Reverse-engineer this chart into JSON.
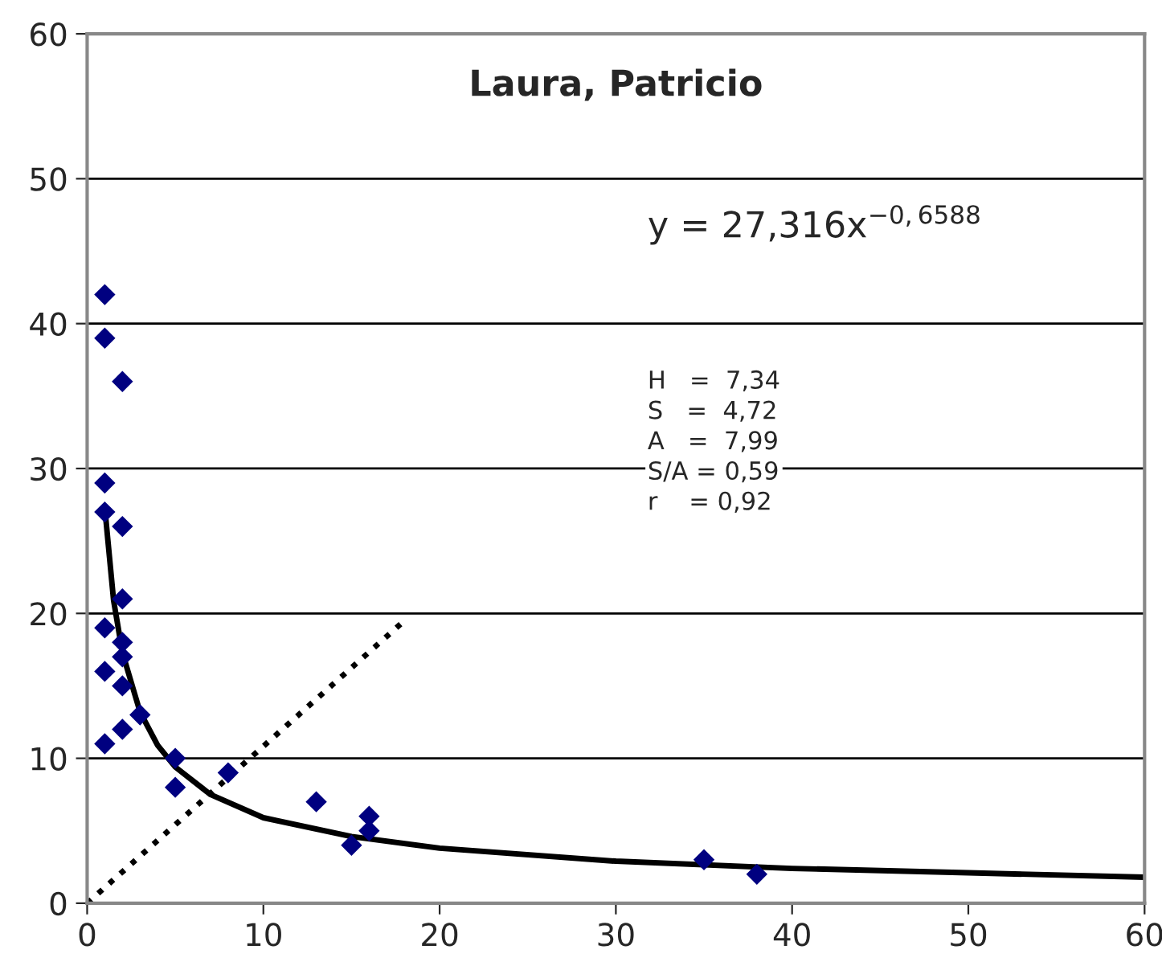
{
  "chart_data": {
    "type": "scatter",
    "title": "Laura, Patricio",
    "xlim": [
      0,
      60
    ],
    "xticks": [
      0,
      10,
      20,
      30,
      40,
      50,
      60
    ],
    "ylim": [
      0,
      60
    ],
    "yticks": [
      0,
      10,
      20,
      30,
      40,
      50,
      60
    ],
    "grid": "y",
    "legend": false,
    "series": [
      {
        "marker": "diamond",
        "color": "#000080",
        "x": [
          1,
          1,
          2,
          1,
          1,
          2,
          2,
          1,
          2,
          2,
          1,
          2,
          3,
          2,
          1,
          5,
          5,
          8,
          13,
          15,
          16,
          16,
          35,
          38
        ],
        "values": [
          42,
          39,
          36,
          29,
          27,
          26,
          21,
          19,
          18,
          17,
          16,
          15,
          13,
          12,
          11,
          10,
          8,
          9,
          7,
          4,
          6,
          5,
          3,
          2
        ]
      },
      {
        "type": "line",
        "marker": "none",
        "line_style": "solid",
        "color": "#000000",
        "x": [
          1,
          1.5,
          2,
          3,
          4,
          5,
          7,
          10,
          15,
          20,
          30,
          40,
          50,
          60
        ],
        "values": [
          27.3,
          20.9,
          17.3,
          13.2,
          10.9,
          9.4,
          7.5,
          5.9,
          4.6,
          3.8,
          2.9,
          2.4,
          2.1,
          1.8
        ]
      },
      {
        "type": "line",
        "marker": "none",
        "line_style": "dotted",
        "color": "#000000",
        "x": [
          0,
          18
        ],
        "values": [
          0,
          19.5
        ]
      }
    ],
    "annotations": [
      "y = 27,316x$^{−0,6588}$",
      "H   =  7,34\nS   =  4,72\nA   =  7,99\nS/A = 0,59\nr    = 0,92"
    ]
  }
}
